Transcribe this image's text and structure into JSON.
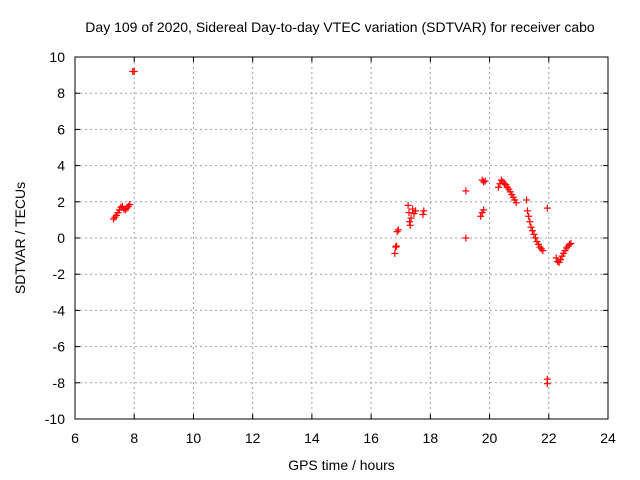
{
  "chart_data": {
    "type": "scatter",
    "title": "Day 109 of 2020, Sidereal Day-to-day VTEC variation (SDTVAR) for receiver cabo",
    "xlabel": "GPS time / hours",
    "ylabel": "SDTVAR / TECUs",
    "xlim": [
      6,
      24
    ],
    "ylim": [
      -10,
      10
    ],
    "xticks": [
      "6",
      "8",
      "10",
      "12",
      "14",
      "16",
      "18",
      "20",
      "22",
      "24"
    ],
    "yticks": [
      "-10",
      "-8",
      "-6",
      "-4",
      "-2",
      "0",
      "2",
      "4",
      "6",
      "8",
      "10"
    ],
    "grid": true,
    "marker": "+",
    "color": "#ff0000",
    "series": [
      {
        "name": "SDTVAR",
        "points": [
          [
            7.3,
            1.05
          ],
          [
            7.35,
            1.15
          ],
          [
            7.4,
            1.25
          ],
          [
            7.45,
            1.4
          ],
          [
            7.5,
            1.55
          ],
          [
            7.55,
            1.7
          ],
          [
            7.6,
            1.75
          ],
          [
            7.65,
            1.6
          ],
          [
            7.7,
            1.55
          ],
          [
            7.75,
            1.65
          ],
          [
            7.8,
            1.75
          ],
          [
            7.85,
            1.85
          ],
          [
            7.95,
            9.2
          ],
          [
            8.0,
            9.2
          ],
          [
            16.8,
            -0.85
          ],
          [
            16.83,
            -0.5
          ],
          [
            16.86,
            -0.45
          ],
          [
            16.88,
            0.35
          ],
          [
            16.92,
            0.45
          ],
          [
            17.25,
            1.8
          ],
          [
            17.28,
            1.4
          ],
          [
            17.3,
            0.9
          ],
          [
            17.32,
            0.7
          ],
          [
            17.35,
            1.1
          ],
          [
            17.4,
            1.6
          ],
          [
            17.45,
            1.35
          ],
          [
            17.5,
            1.5
          ],
          [
            17.75,
            1.3
          ],
          [
            17.78,
            1.5
          ],
          [
            19.2,
            2.6
          ],
          [
            19.2,
            0.0
          ],
          [
            19.7,
            1.2
          ],
          [
            19.75,
            1.4
          ],
          [
            19.8,
            1.55
          ],
          [
            19.75,
            3.2
          ],
          [
            19.8,
            3.1
          ],
          [
            19.85,
            3.15
          ],
          [
            20.3,
            2.8
          ],
          [
            20.35,
            3.0
          ],
          [
            20.4,
            3.2
          ],
          [
            20.45,
            3.1
          ],
          [
            20.5,
            3.0
          ],
          [
            20.55,
            2.95
          ],
          [
            20.6,
            2.8
          ],
          [
            20.65,
            2.7
          ],
          [
            20.7,
            2.55
          ],
          [
            20.75,
            2.4
          ],
          [
            20.8,
            2.25
          ],
          [
            20.85,
            2.1
          ],
          [
            20.9,
            1.95
          ],
          [
            21.25,
            2.1
          ],
          [
            21.28,
            1.5
          ],
          [
            21.32,
            1.2
          ],
          [
            21.36,
            0.9
          ],
          [
            21.4,
            0.6
          ],
          [
            21.45,
            0.4
          ],
          [
            21.5,
            0.2
          ],
          [
            21.55,
            0.0
          ],
          [
            21.6,
            -0.2
          ],
          [
            21.65,
            -0.35
          ],
          [
            21.7,
            -0.5
          ],
          [
            21.75,
            -0.6
          ],
          [
            21.8,
            -0.7
          ],
          [
            21.95,
            1.65
          ],
          [
            21.95,
            -7.8
          ],
          [
            21.95,
            -8.05
          ],
          [
            22.25,
            -1.1
          ],
          [
            22.3,
            -1.3
          ],
          [
            22.35,
            -1.35
          ],
          [
            22.4,
            -1.2
          ],
          [
            22.45,
            -1.0
          ],
          [
            22.5,
            -0.85
          ],
          [
            22.55,
            -0.7
          ],
          [
            22.6,
            -0.55
          ],
          [
            22.65,
            -0.45
          ],
          [
            22.7,
            -0.35
          ],
          [
            22.75,
            -0.3
          ]
        ]
      }
    ]
  }
}
